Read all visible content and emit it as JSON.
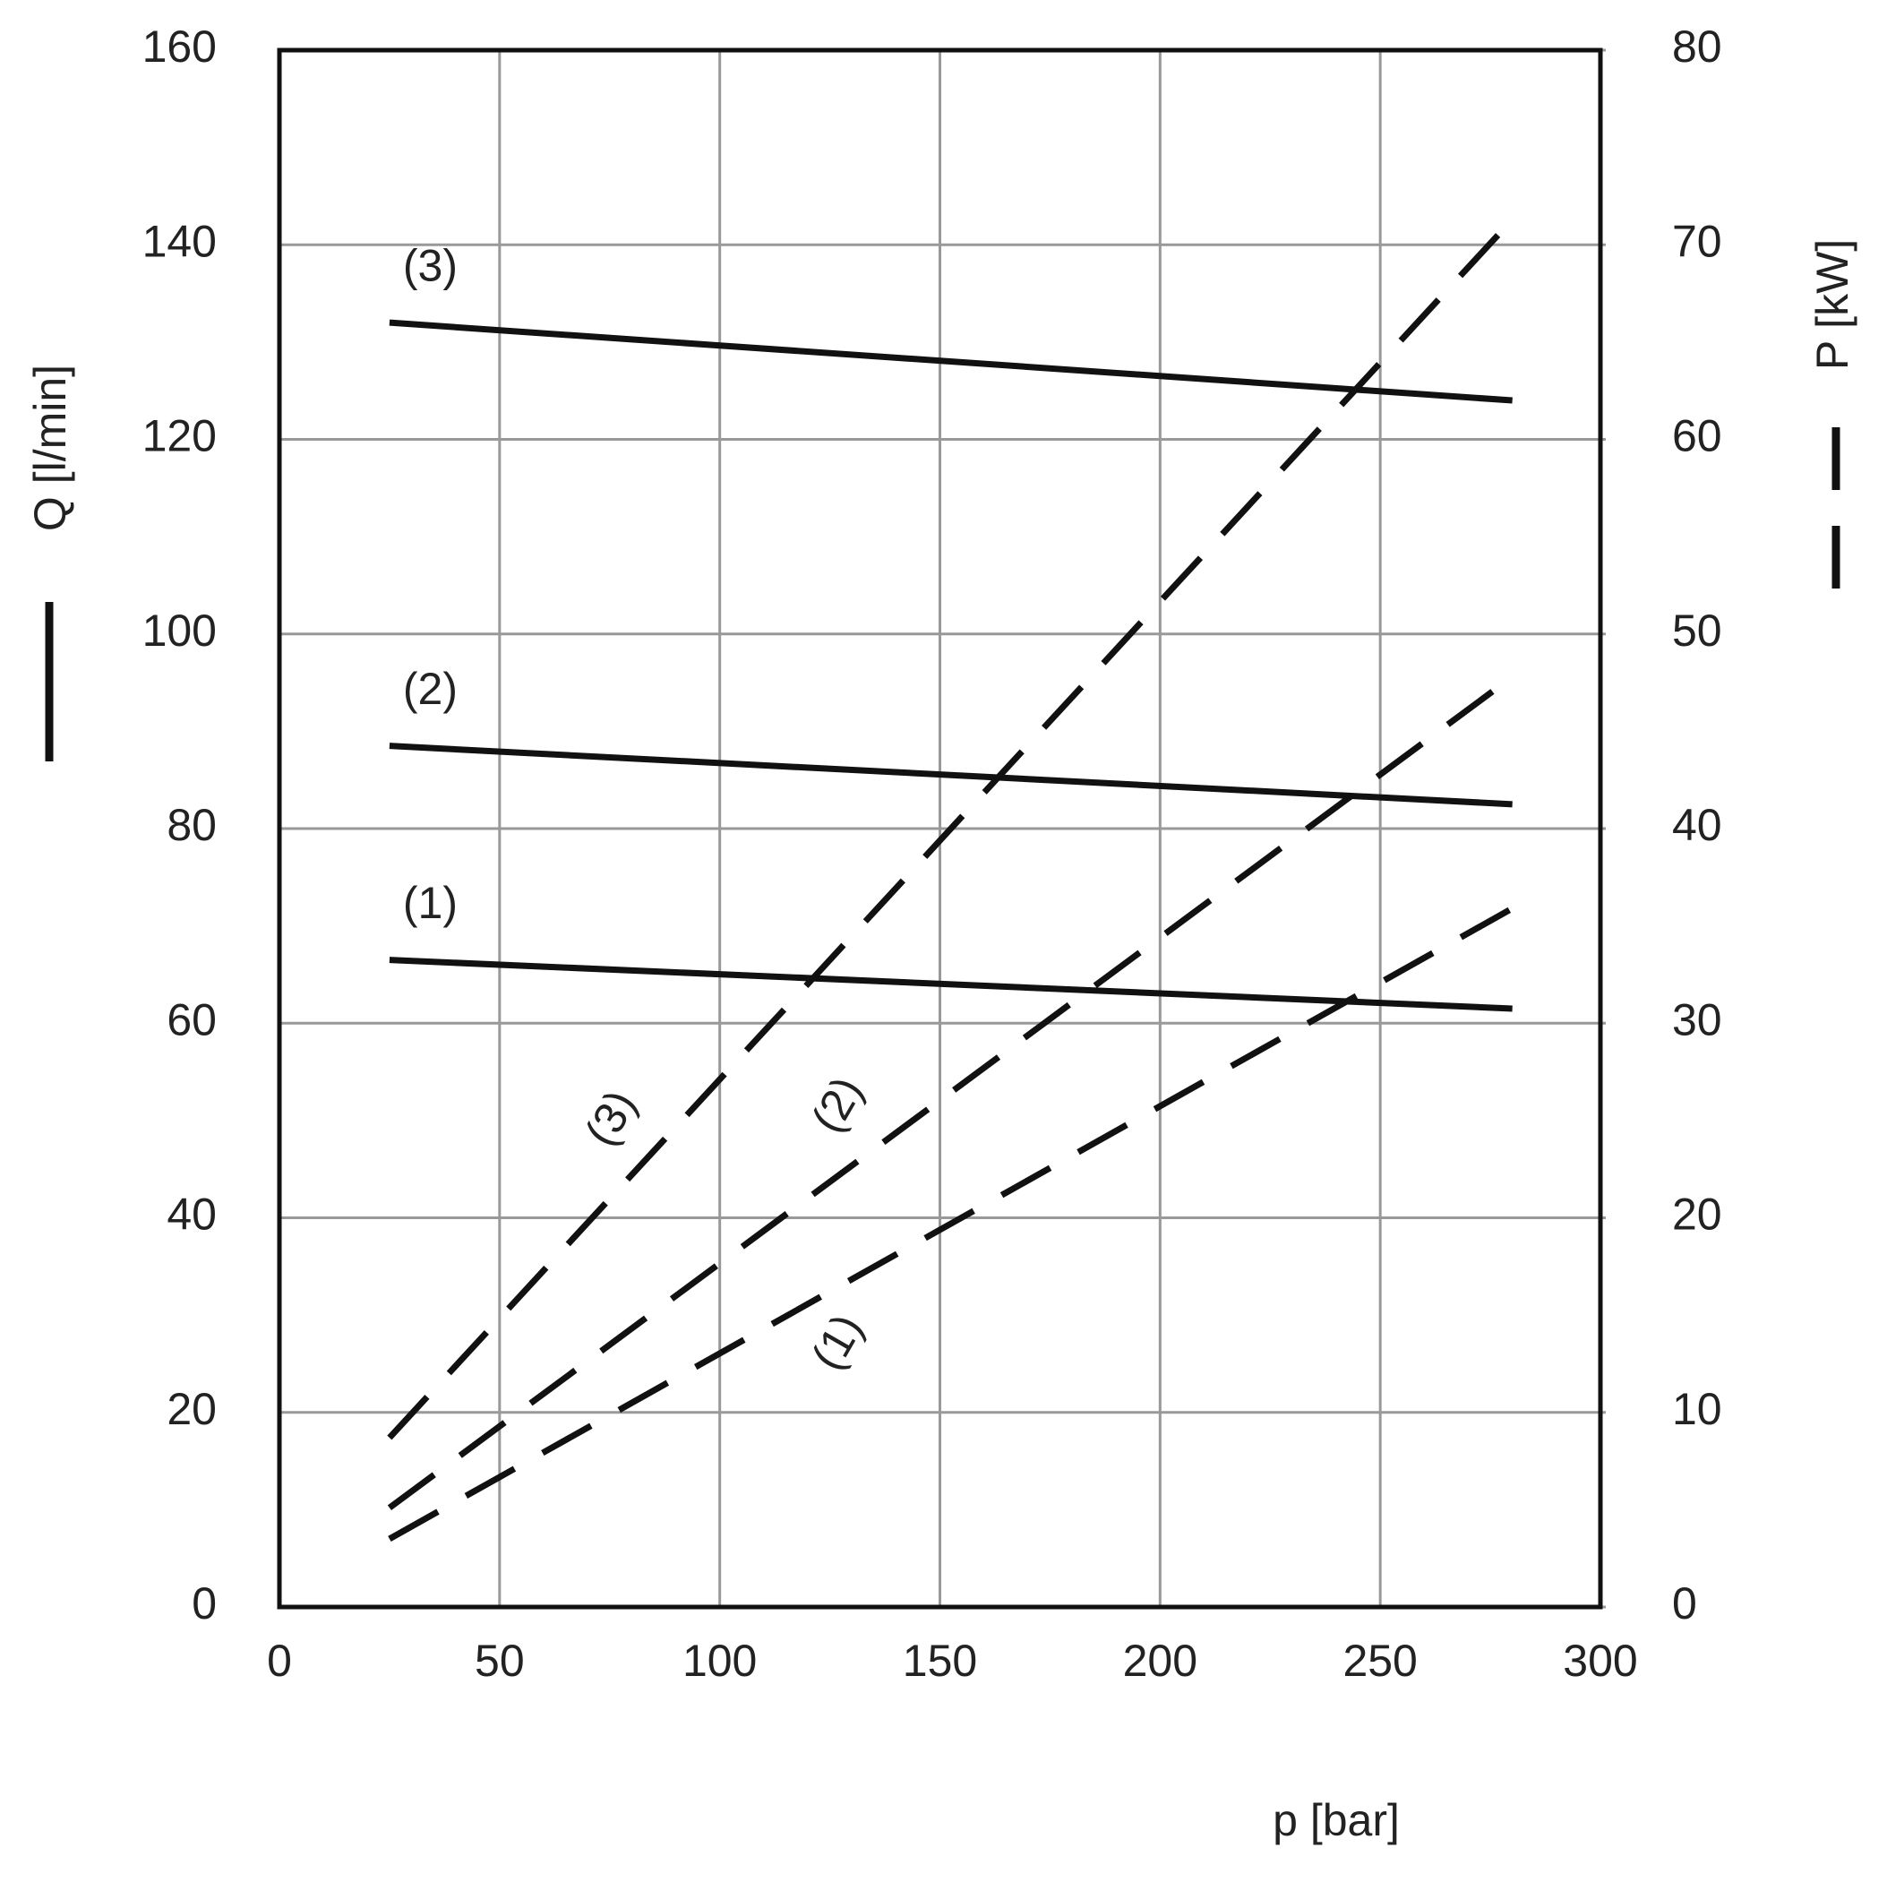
{
  "chart_data": {
    "type": "line",
    "x_label": "p [bar]",
    "y_label": "Q [l/min]",
    "y2_label": "P [kW]",
    "x": [
      25,
      280
    ],
    "series": [
      {
        "name": "(1)",
        "color": "#111111",
        "dash": false,
        "values": [
          66.5,
          61.5
        ]
      },
      {
        "name": "(2)",
        "color": "#111111",
        "dash": false,
        "values": [
          88.5,
          82.5
        ]
      },
      {
        "name": "(3)",
        "color": "#111111",
        "dash": false,
        "values": [
          132,
          124
        ]
      },
      {
        "name": "(1)",
        "color": "#111111",
        "dash": true,
        "axis": "y2",
        "values": [
          3.5,
          35.9
        ]
      },
      {
        "name": "(2)",
        "color": "#111111",
        "dash": true,
        "axis": "y2",
        "values": [
          5.1,
          47.8
        ]
      },
      {
        "name": "(3)",
        "color": "#111111",
        "dash": true,
        "axis": "y2",
        "values": [
          8.7,
          71.3
        ]
      }
    ],
    "xlim": [
      0,
      300
    ],
    "xticks": [
      0,
      50,
      100,
      150,
      200,
      250,
      300
    ],
    "ylim": [
      0,
      160
    ],
    "yticks": [
      0,
      20,
      40,
      60,
      80,
      100,
      120,
      140,
      160
    ],
    "y2lim": [
      0,
      80
    ],
    "y2ticks": [
      0,
      10,
      20,
      30,
      40,
      50,
      60,
      70,
      80
    ],
    "grid": true
  }
}
